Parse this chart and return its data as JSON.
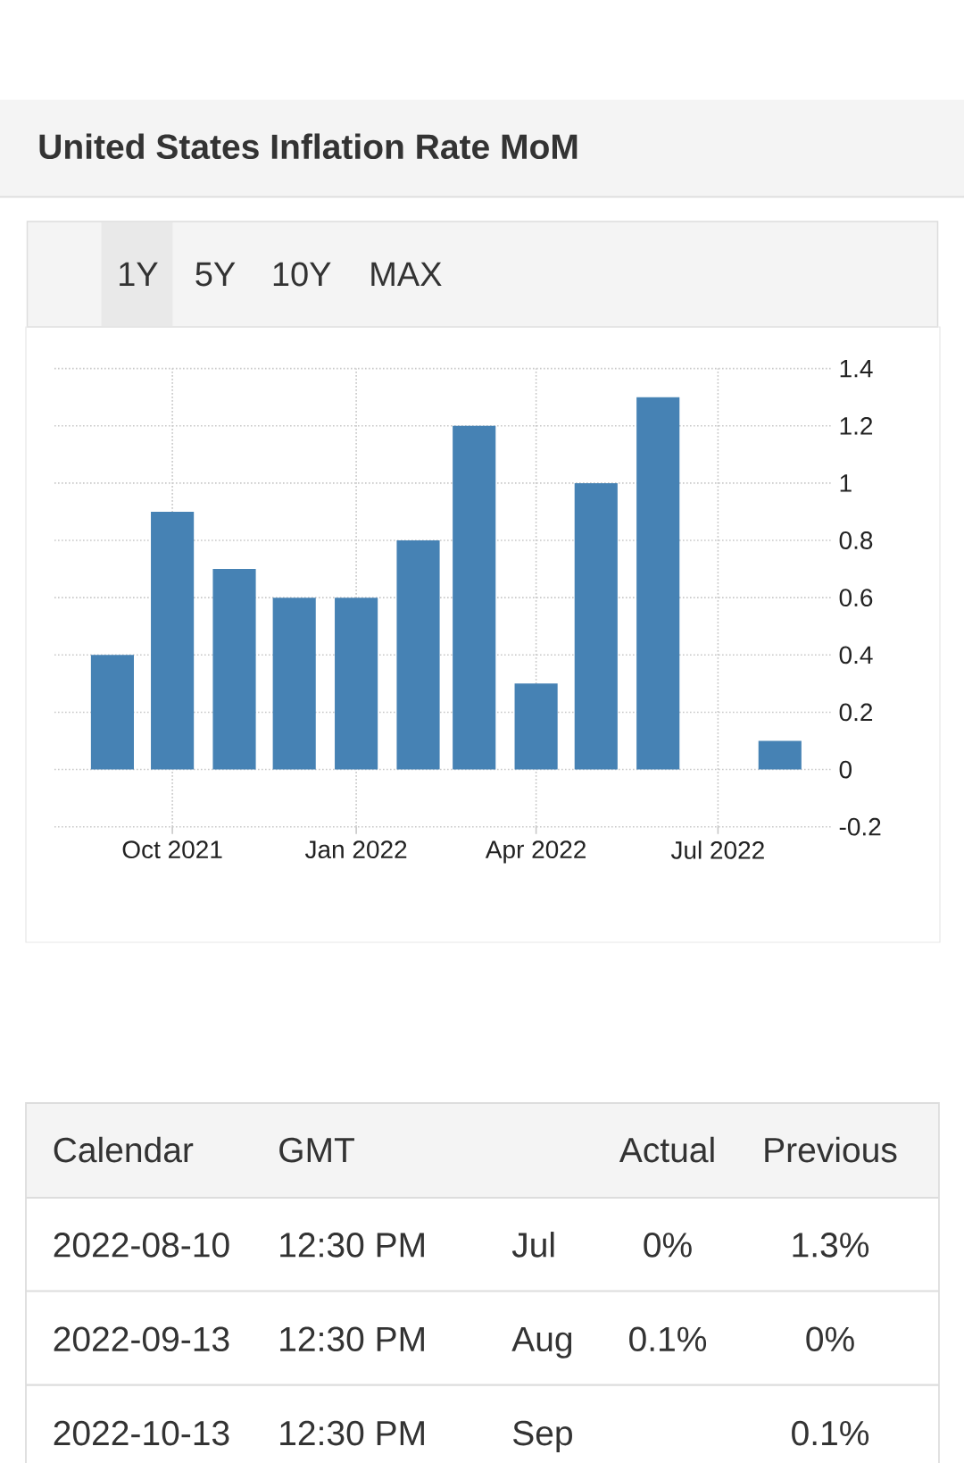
{
  "chart_data": {
    "type": "bar",
    "title": "United States Inflation Rate MoM",
    "x": [
      "2021-09",
      "2021-10",
      "2021-11",
      "2021-12",
      "2022-01",
      "2022-02",
      "2022-03",
      "2022-04",
      "2022-05",
      "2022-06",
      "2022-07",
      "2022-08"
    ],
    "values": [
      0.4,
      0.9,
      0.7,
      0.6,
      0.6,
      0.8,
      1.2,
      0.3,
      1,
      1.3,
      0,
      0.1
    ],
    "color": "#4682b4",
    "xlim": [
      "2021-08-03",
      "2022-08-27"
    ],
    "xticks": [
      {
        "value": "2021-10",
        "label": "Oct 2021"
      },
      {
        "value": "2022-01",
        "label": "Jan 2022"
      },
      {
        "value": "2022-04",
        "label": "Apr 2022"
      },
      {
        "value": "2022-07",
        "label": "Jul 2022"
      }
    ],
    "ylim": [
      -0.2,
      1.4
    ],
    "yticks": [
      -0.2,
      0,
      0.2,
      0.4,
      0.6,
      0.8,
      1,
      1.2,
      1.4
    ],
    "grid": true,
    "annotations": [
      "1Y",
      "5Y",
      "10Y",
      "MAX",
      "Calendar",
      "GMT",
      "Actual",
      "Previous",
      "2022-08-10",
      "12:30 PM",
      "Jul",
      "0%",
      "1.3%",
      "2022-09-13",
      "12:30 PM",
      "Aug",
      "0.1%",
      "0%",
      "2022-10-13",
      "12:30 PM",
      "Sep",
      "0.1%"
    ]
  }
}
